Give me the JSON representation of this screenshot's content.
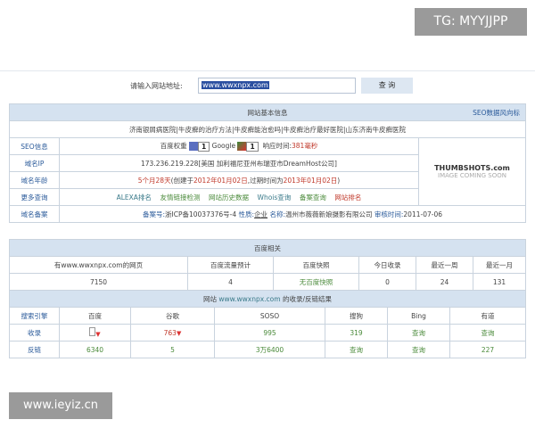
{
  "watermark_top": "TG: MYYJJPP",
  "watermark_bottom": "www.ieyiz.cn",
  "search": {
    "label": "请输入网站地址:",
    "value": "www.wwxnpx.com",
    "button": "查 询"
  },
  "basic": {
    "title": "网站基本信息",
    "trend_link": "SEO数据风向标",
    "links": "济南银屑病医院|牛皮癣的治疗方法|牛皮癣能治愈吗|牛皮癣治疗最好医院|山东济南牛皮癣医院",
    "seo_label": "SEO信息",
    "baidu_weight_label": "百度权重",
    "baidu_weight": "1",
    "google_label": "Google",
    "google_pr": "1",
    "response_label": "响应时间:",
    "response_value": "381毫秒",
    "ip_label": "域名IP",
    "ip_value": "173.236.219.228[美国 加利福尼亚州布瑞亚市DreamHost公司]",
    "age_label": "域名年龄",
    "age_value": "5个月28天",
    "age_created_prefix": "(创建于",
    "age_created": "2012年01月02日",
    "age_expire_prefix": ",过期时间为",
    "age_expire": "2013年01月02日",
    "age_suffix": ")",
    "more_label": "更多查询",
    "more_links": [
      "ALEXA排名",
      "友情链接检测",
      "网站历史数据",
      "Whois查询",
      "备案查询",
      "网站排名"
    ],
    "icp_label": "域名备案",
    "icp_no_label": "备案号:",
    "icp_no": "浙ICP备10037376号-4",
    "icp_type_label": "性质:",
    "icp_type": "企业",
    "icp_name_label": "名称:",
    "icp_name": "温州市薇薇新娘摄影有限公司",
    "icp_date_label": "审核时间:",
    "icp_date": "2011-07-06",
    "thumb_logo": "THUMBSHOTS.com",
    "thumb_text": "IMAGE COMING SOON"
  },
  "baidu": {
    "title": "百度相关",
    "headers": [
      "有www.wwxnpx.com的网页",
      "百度流量预计",
      "百度快照",
      "今日收录",
      "最近一周",
      "最近一月"
    ],
    "values": [
      "7150",
      "4",
      "无百度快照",
      "0",
      "24",
      "131"
    ]
  },
  "results": {
    "title_prefix": "网站",
    "title_domain": "www.wwxnpx.com",
    "title_suffix": "的收录/反链结果",
    "headers": [
      "搜索引擎",
      "百度",
      "谷歌",
      "SOSO",
      "搜狗",
      "Bing",
      "有道"
    ],
    "rows": [
      {
        "label": "收录",
        "values": [
          "",
          "763",
          "995",
          "319",
          "查询",
          "查询"
        ]
      },
      {
        "label": "反链",
        "values": [
          "6340",
          "5",
          "3万6400",
          "查询",
          "查询",
          "227"
        ]
      }
    ]
  }
}
